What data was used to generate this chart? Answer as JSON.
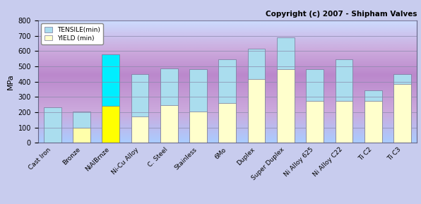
{
  "categories": [
    "Cast Iron",
    "Bronze",
    "NiAlBrnze",
    "Ni-Cu Alloy",
    "C. Steel",
    "Stainless",
    "6Mo",
    "Duplex",
    "Super Duplex",
    "Ni Alloy 625",
    "Ni Alloy C22",
    "Ti C2",
    "Ti C3"
  ],
  "tensile": [
    230,
    205,
    580,
    448,
    485,
    483,
    548,
    615,
    690,
    483,
    548,
    345,
    448
  ],
  "yield": [
    0,
    100,
    240,
    170,
    248,
    205,
    260,
    415,
    483,
    275,
    275,
    275,
    383
  ],
  "tensile_color": "#aaddee",
  "tensile_color_nial": "#00eeff",
  "yield_color": "#ffffcc",
  "yield_color_bronze": "#ffffaa",
  "yield_color_nial": "#ffff00",
  "ylabel": "MPa",
  "ylim": [
    0,
    800
  ],
  "yticks": [
    0,
    100,
    200,
    300,
    400,
    500,
    600,
    700,
    800
  ],
  "copyright_text": "Copyright (c) 2007 - Shipham Valves",
  "legend_tensile": "TENSILE(min)",
  "legend_yield": "YIELD (min)",
  "bar_width": 0.6,
  "fig_bg": "#c8ccee",
  "grid_color": "#8888aa",
  "grid_alpha": 0.8
}
